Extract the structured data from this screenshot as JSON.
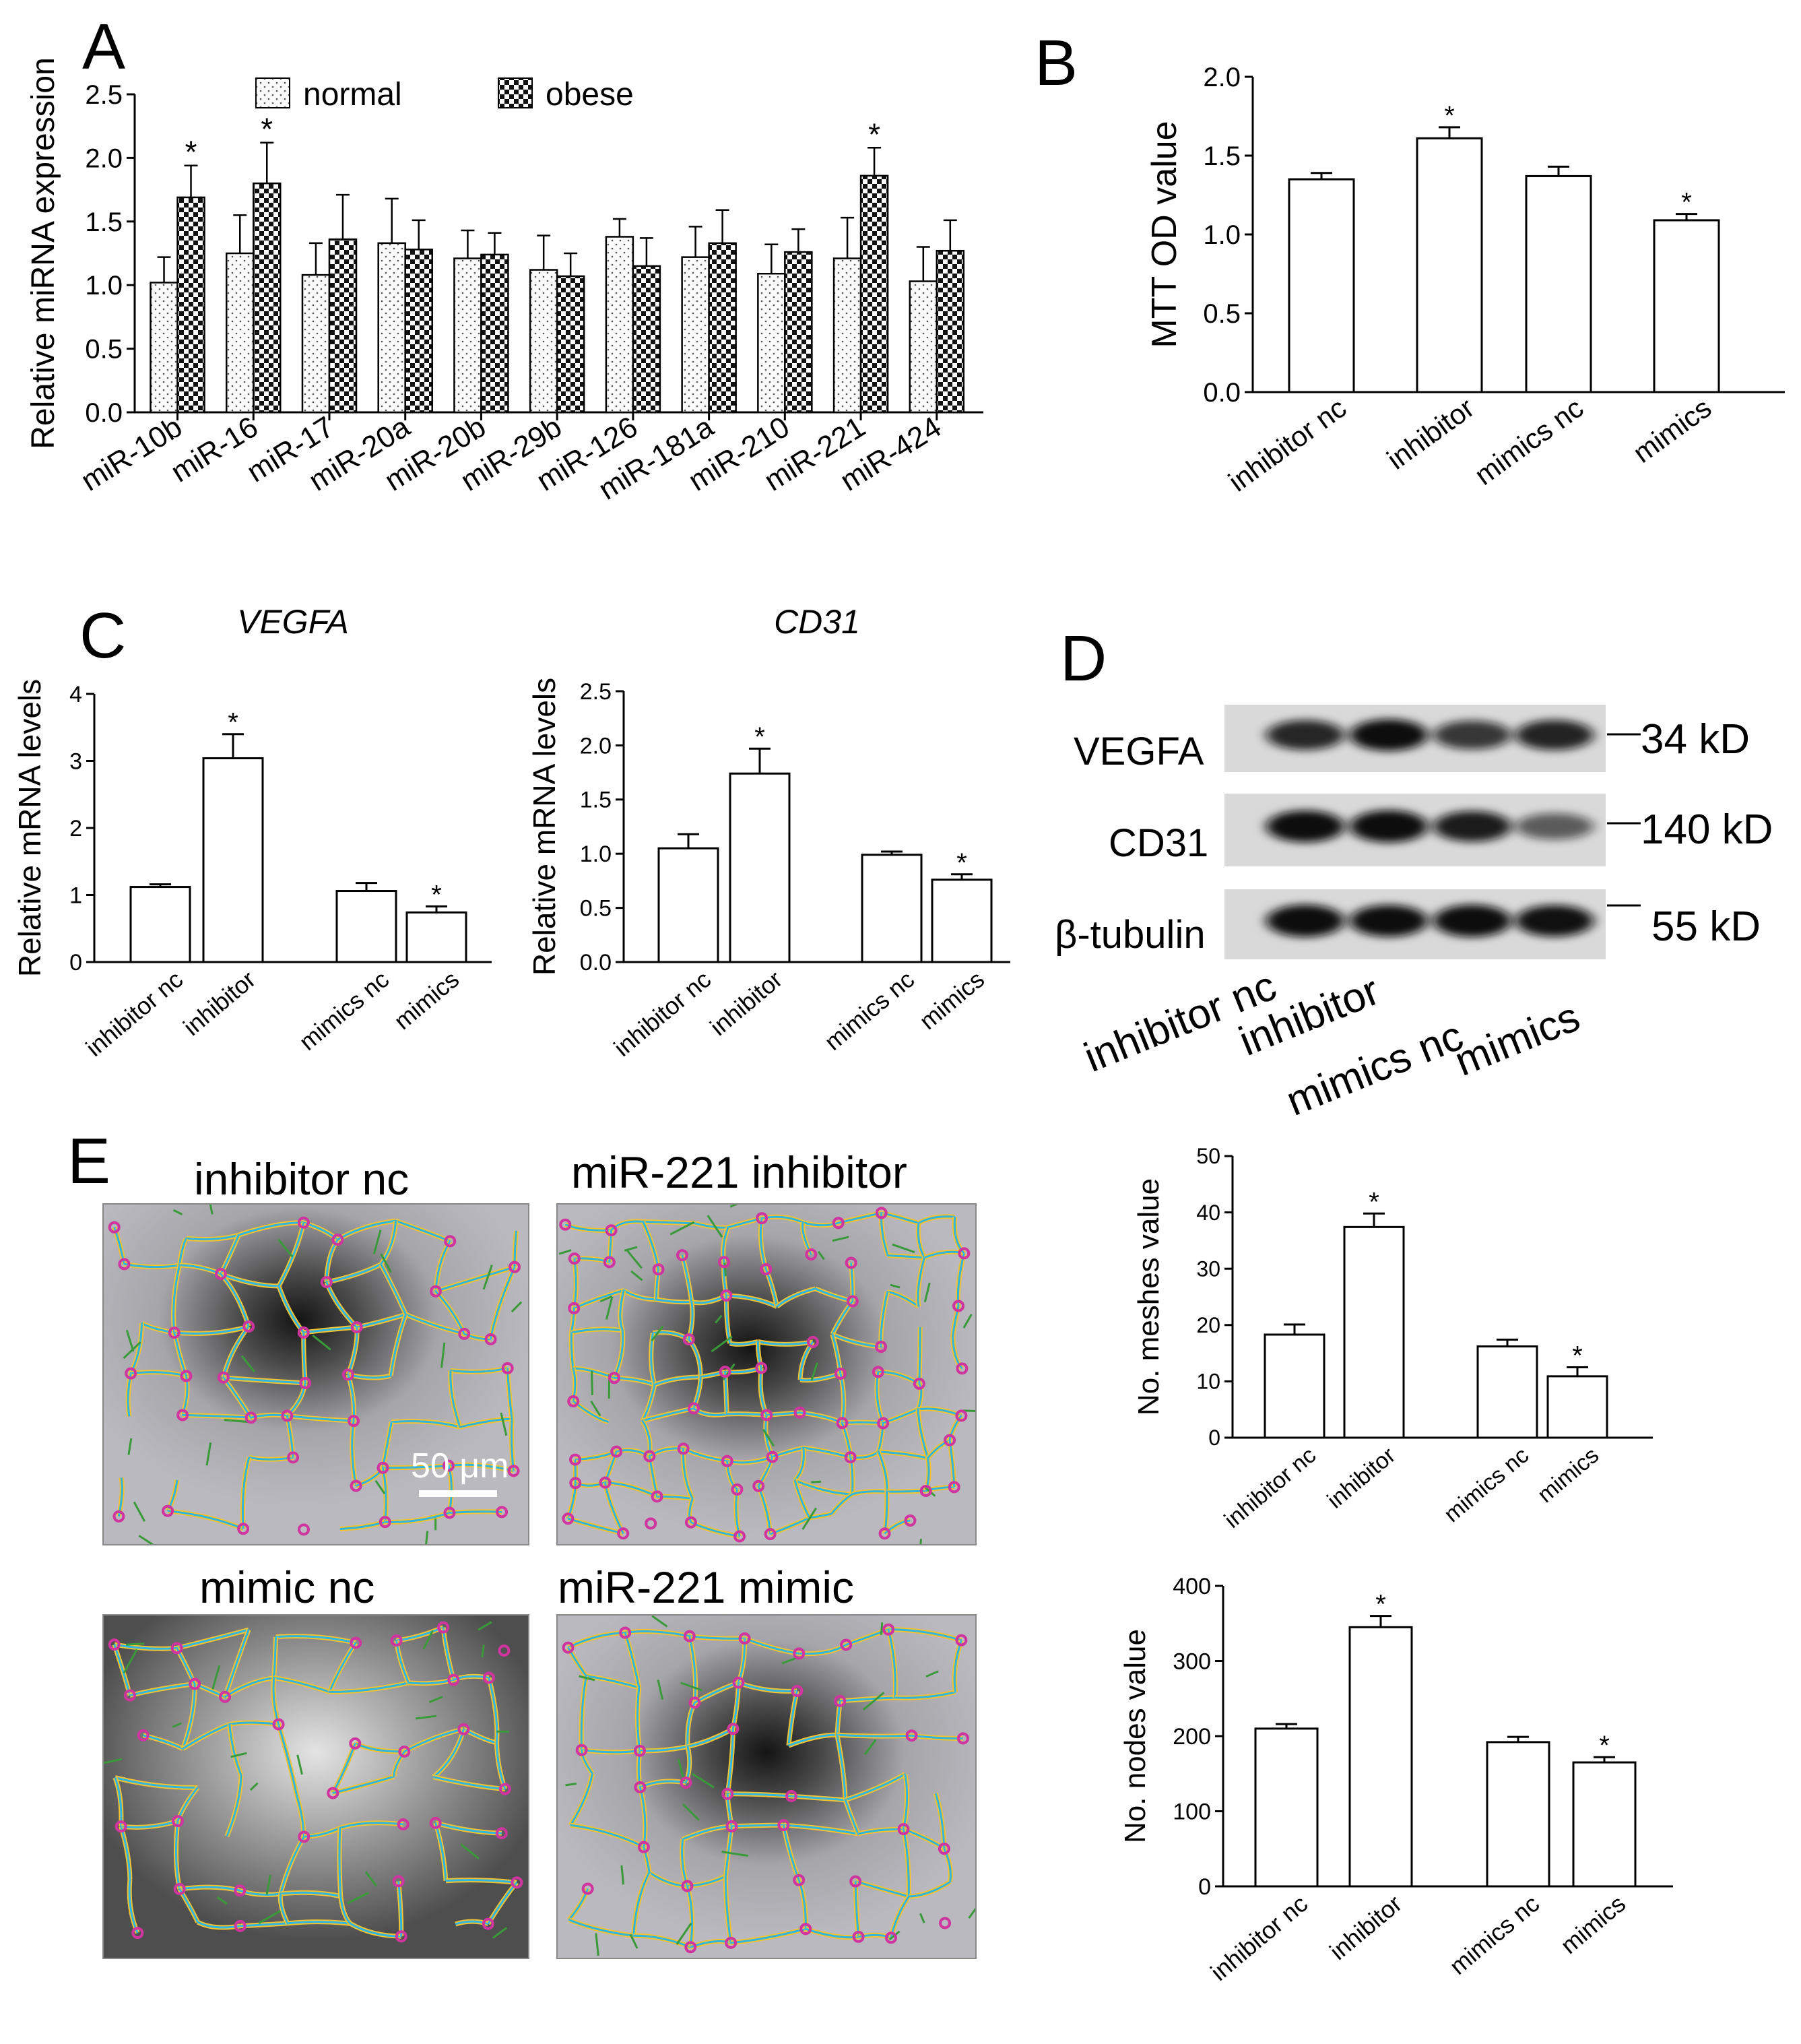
{
  "panel_letters": {
    "A": "A",
    "B": "B",
    "C": "C",
    "D": "D",
    "E": "E"
  },
  "chart_data": [
    {
      "id": "A",
      "type": "bar",
      "title": "",
      "xlabel": "",
      "ylabel": "Relative miRNA expression",
      "ylim": [
        0,
        2.5
      ],
      "yticks": [
        "0.0",
        "0.5",
        "1.0",
        "1.5",
        "2.0",
        "2.5"
      ],
      "legend_position": "top",
      "categories": [
        "miR-10b",
        "miR-16",
        "miR-17",
        "miR-20a",
        "miR-20b",
        "miR-29b",
        "miR-126",
        "miR-181a",
        "miR-210",
        "miR-221",
        "miR-424"
      ],
      "series": [
        {
          "name": "normal",
          "values": [
            1.02,
            1.25,
            1.08,
            1.33,
            1.21,
            1.12,
            1.38,
            1.22,
            1.09,
            1.21,
            1.03
          ],
          "errors": [
            0.2,
            0.3,
            0.25,
            0.35,
            0.22,
            0.27,
            0.14,
            0.24,
            0.23,
            0.32,
            0.27
          ],
          "pattern": "dots"
        },
        {
          "name": "obese",
          "values": [
            1.69,
            1.8,
            1.36,
            1.28,
            1.24,
            1.07,
            1.15,
            1.33,
            1.26,
            1.86,
            1.27
          ],
          "errors": [
            0.25,
            0.32,
            0.35,
            0.23,
            0.17,
            0.18,
            0.22,
            0.26,
            0.18,
            0.22,
            0.24
          ],
          "pattern": "checker"
        }
      ],
      "significance": [
        "miR-10b",
        "miR-16",
        "miR-221"
      ],
      "star": "*"
    },
    {
      "id": "B",
      "type": "bar",
      "title": "",
      "ylabel": "MTT OD value",
      "ylim": [
        0,
        2.0
      ],
      "yticks": [
        "0.0",
        "0.5",
        "1.0",
        "1.5",
        "2.0"
      ],
      "categories": [
        "inhibitor nc",
        "inhibitor",
        "mimics nc",
        "mimics"
      ],
      "values": [
        1.35,
        1.61,
        1.37,
        1.09
      ],
      "errors": [
        0.04,
        0.07,
        0.06,
        0.04
      ],
      "significant": [
        false,
        true,
        false,
        true
      ],
      "star": "*"
    },
    {
      "id": "C1",
      "type": "bar",
      "title": "VEGFA",
      "ylabel": "Relative mRNA levels",
      "ylim": [
        0,
        4
      ],
      "yticks": [
        "0",
        "1",
        "2",
        "3",
        "4"
      ],
      "categories": [
        "inhibitor nc",
        "inhibitor",
        "mimics nc",
        "mimics"
      ],
      "values": [
        1.12,
        3.04,
        1.06,
        0.74
      ],
      "errors": [
        0.04,
        0.36,
        0.12,
        0.09
      ],
      "significant": [
        false,
        true,
        false,
        true
      ],
      "star": "*"
    },
    {
      "id": "C2",
      "type": "bar",
      "title": "CD31",
      "ylabel": "Relative mRNA levels",
      "ylim": [
        0,
        2.5
      ],
      "yticks": [
        "0.0",
        "0.5",
        "1.0",
        "1.5",
        "2.0",
        "2.5"
      ],
      "categories": [
        "inhibitor nc",
        "inhibitor",
        "mimics nc",
        "mimics"
      ],
      "values": [
        1.05,
        1.74,
        0.99,
        0.76
      ],
      "errors": [
        0.13,
        0.23,
        0.03,
        0.05
      ],
      "significant": [
        false,
        true,
        false,
        true
      ],
      "star": "*"
    },
    {
      "id": "E1",
      "type": "bar",
      "title": "",
      "ylabel": "No. meshes value",
      "ylim": [
        0,
        50
      ],
      "yticks": [
        "0",
        "10",
        "20",
        "30",
        "40",
        "50"
      ],
      "categories": [
        "inhibitor nc",
        "inhibitor",
        "mimics nc",
        "mimics"
      ],
      "values": [
        18.3,
        37.4,
        16.2,
        10.9
      ],
      "errors": [
        1.8,
        2.4,
        1.2,
        1.6
      ],
      "significant": [
        false,
        true,
        false,
        true
      ],
      "star": "*"
    },
    {
      "id": "E2",
      "type": "bar",
      "title": "",
      "ylabel": "No. nodes value",
      "ylim": [
        0,
        400
      ],
      "yticks": [
        "0",
        "100",
        "200",
        "300",
        "400"
      ],
      "categories": [
        "inhibitor nc",
        "inhibitor",
        "mimics nc",
        "mimics"
      ],
      "values": [
        210,
        345,
        192,
        165
      ],
      "errors": [
        6,
        15,
        7,
        7
      ],
      "significant": [
        false,
        true,
        false,
        true
      ],
      "star": "*"
    }
  ],
  "western_blot": {
    "rows": [
      {
        "protein": "VEGFA",
        "size": "34 kD",
        "intensity": [
          0.78,
          0.95,
          0.68,
          0.8
        ]
      },
      {
        "protein": "CD31",
        "size": "140 kD",
        "intensity": [
          0.95,
          1.0,
          0.85,
          0.45
        ]
      },
      {
        "protein": "β-tubulin",
        "size": "55 kD",
        "intensity": [
          1.0,
          0.95,
          1.0,
          0.92
        ]
      }
    ],
    "lanes": [
      "inhibitor nc",
      "inhibitor",
      "mimics nc",
      "mimics"
    ]
  },
  "tube_images": {
    "titles": [
      "inhibitor nc",
      "miR-221 inhibitor",
      "mimic nc",
      "miR-221 mimic"
    ],
    "scale_bar": "50 μm"
  },
  "colors": {
    "bar": "#ffffff",
    "axis": "#000000",
    "blot_bg": "#d9d9d9",
    "network_yellow": "#f2c230",
    "network_cyan": "#2fb6e0",
    "node_magenta": "#d0359f",
    "branch_green": "#3a9a3a"
  }
}
